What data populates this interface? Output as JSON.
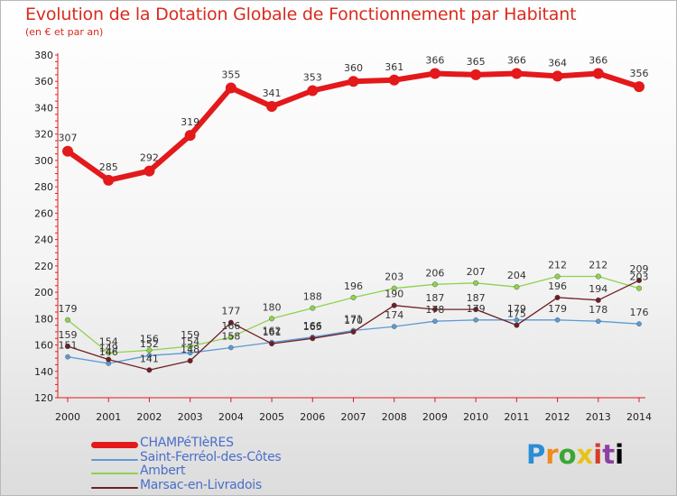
{
  "header": {
    "title": "Evolution de la Dotation Globale de Fonctionnement par Habitant",
    "subtitle": "(en € et par an)"
  },
  "logo": {
    "text": "Proxiti"
  },
  "chart_data": {
    "type": "line",
    "title": "Evolution de la Dotation Globale de Fonctionnement par Habitant",
    "subtitle": "(en € et par an)",
    "xlabel": "",
    "ylabel": "",
    "x": [
      "2000",
      "2001",
      "2002",
      "2003",
      "2004",
      "2005",
      "2006",
      "2007",
      "2008",
      "2009",
      "2010",
      "2011",
      "2012",
      "2013",
      "2014"
    ],
    "ylim": [
      120,
      380
    ],
    "yticks": [
      120,
      140,
      160,
      180,
      200,
      220,
      240,
      260,
      280,
      300,
      320,
      340,
      360,
      380
    ],
    "grid": false,
    "legend": "bottom-left",
    "series": [
      {
        "name": "CHAMPéTIèRES",
        "color": "#e3191b",
        "values": [
          307,
          285,
          292,
          319,
          355,
          341,
          353,
          360,
          361,
          366,
          365,
          366,
          364,
          366,
          356
        ]
      },
      {
        "name": "Saint-Ferréol-des-Côtes",
        "color": "#5b9bd5",
        "values": [
          151,
          146,
          152,
          154,
          158,
          162,
          166,
          171,
          174,
          178,
          179,
          179,
          179,
          178,
          176
        ]
      },
      {
        "name": "Ambert",
        "color": "#8fd14f",
        "values": [
          179,
          154,
          156,
          159,
          166,
          180,
          188,
          196,
          203,
          206,
          207,
          204,
          212,
          212,
          203
        ]
      },
      {
        "name": "Marsac-en-Livradois",
        "color": "#6e1f25",
        "values": [
          159,
          149,
          141,
          148,
          177,
          161,
          165,
          170,
          190,
          187,
          187,
          175,
          196,
          194,
          209
        ]
      }
    ]
  }
}
